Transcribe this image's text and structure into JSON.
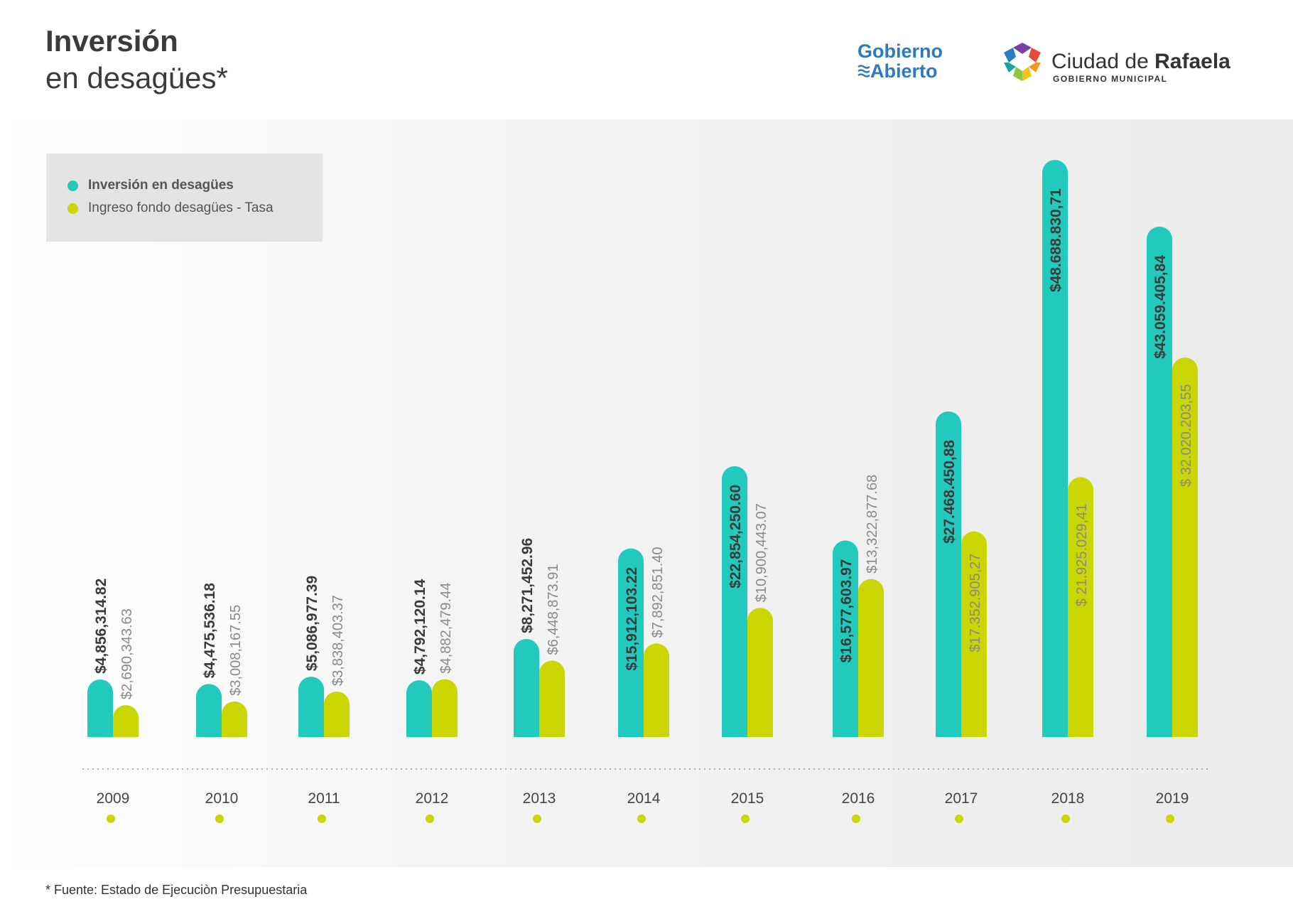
{
  "header": {
    "title_bold": "Inversión",
    "title_light": "en desagües*"
  },
  "logos": {
    "gobierno_abierto_line1": "Gobierno",
    "gobierno_abierto_line2": "Abierto",
    "ciudad_name_prefix": "Ciudad de ",
    "ciudad_name_bold": "Rafaela",
    "ciudad_subtitle": "GOBIERNO MUNICIPAL"
  },
  "footnote": "* Fuente: Estado de Ejecuciòn Presupuestaria",
  "colors": {
    "inversion": "#22c9bd",
    "ingreso": "#cad600",
    "year_dot": "#cad600",
    "label_bold": "#3a3a3a",
    "label_light": "#8a8a8a"
  },
  "chart_data": {
    "type": "bar",
    "categories": [
      "2009",
      "2010",
      "2011",
      "2012",
      "2013",
      "2014",
      "2015",
      "2016",
      "2017",
      "2018",
      "2019"
    ],
    "series": [
      {
        "name": "Inversión en desagües",
        "values": [
          4856314.82,
          4475536.18,
          5086977.39,
          4792120.14,
          8271452.96,
          15912103.22,
          22854250.6,
          16577603.97,
          27468450.88,
          48688830.71,
          43059405.84
        ],
        "labels": [
          "$4,856,314.82",
          "$4,475,536.18",
          "$5,086,977.39",
          "$4,792,120.14",
          "$8,271,452.96",
          "$15,912,103.22",
          "$22,854,250.60",
          "$16,577,603.97",
          "$27.468.450,88",
          "$48.688.830,71",
          "$43.059.405,84"
        ]
      },
      {
        "name": "Ingreso fondo desagües - Tasa",
        "values": [
          2690343.63,
          3008167.55,
          3838403.37,
          4882479.44,
          6448873.91,
          7892851.4,
          10900443.07,
          13322877.68,
          17352905.27,
          21925029.41,
          32020203.55
        ],
        "labels": [
          "$2,690,343.63",
          "$3,008,167.55",
          "$3,838,403.37",
          "$4,882,479.44",
          "$6,448,873.91",
          "$7,892,851.40",
          "$10,900,443.07",
          "$13,322,877.68",
          "$17.352.905,27",
          "$ 21.925.029,41",
          "$ 32.020.203,55"
        ]
      }
    ],
    "legend_position": "top-left",
    "grid": false
  }
}
